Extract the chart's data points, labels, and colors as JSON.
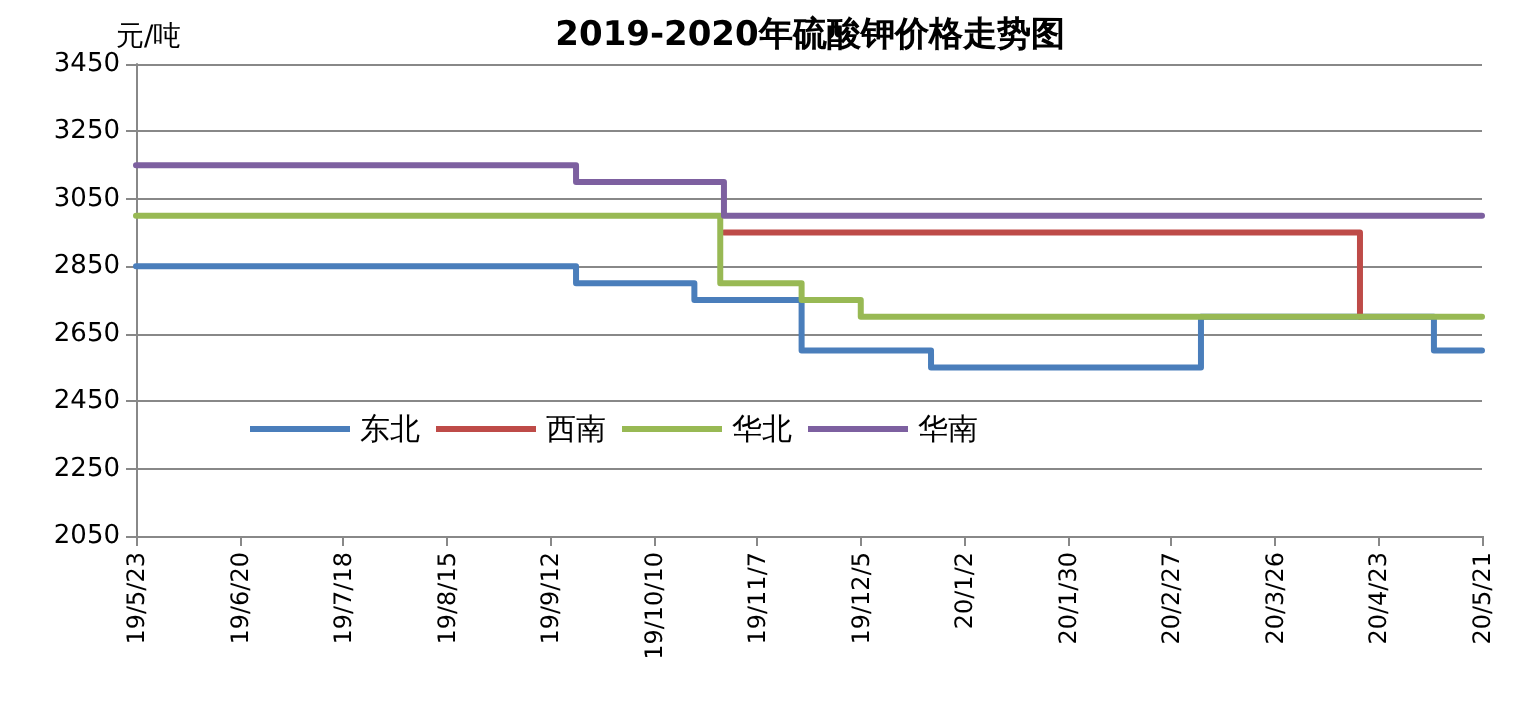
{
  "chart_data": {
    "type": "step",
    "title": "2019-2020年硫酸钾价格走势图",
    "ylabel": "元/吨",
    "series": [
      {
        "name": "东北",
        "color": "#4a7ebb",
        "x": [
          "2019-05-23",
          "2019-09-19",
          "2019-10-21",
          "2019-11-19",
          "2019-12-24",
          "2020-03-06",
          "2020-05-08",
          "2020-05-21"
        ],
        "values": [
          2850,
          2800,
          2750,
          2600,
          2550,
          2700,
          2600,
          2600
        ]
      },
      {
        "name": "西南",
        "color": "#be4b48",
        "x": [
          "2019-10-29",
          "2020-04-18"
        ],
        "values": [
          2950,
          2700
        ]
      },
      {
        "name": "华北",
        "color": "#98b954",
        "x": [
          "2019-05-23",
          "2019-10-28",
          "2019-11-19",
          "2019-12-05",
          "2020-05-21"
        ],
        "values": [
          3000,
          2800,
          2750,
          2700,
          2700
        ]
      },
      {
        "name": "华南",
        "color": "#7d60a0",
        "x": [
          "2019-05-23",
          "2019-09-19",
          "2019-10-29",
          "2020-05-21"
        ],
        "values": [
          3150,
          3100,
          3000,
          3000
        ]
      }
    ],
    "xlim": [
      "2019-05-23",
      "2020-05-21"
    ],
    "xticks": [
      {
        "value": "2019-05-23",
        "label": "19/5/23"
      },
      {
        "value": "2019-06-20",
        "label": "19/6/20"
      },
      {
        "value": "2019-07-18",
        "label": "19/7/18"
      },
      {
        "value": "2019-08-15",
        "label": "19/8/15"
      },
      {
        "value": "2019-09-12",
        "label": "19/9/12"
      },
      {
        "value": "2019-10-10",
        "label": "19/10/10"
      },
      {
        "value": "2019-11-07",
        "label": "19/11/7"
      },
      {
        "value": "2019-12-05",
        "label": "19/12/5"
      },
      {
        "value": "2020-01-02",
        "label": "20/1/2"
      },
      {
        "value": "2020-01-30",
        "label": "20/1/30"
      },
      {
        "value": "2020-02-27",
        "label": "20/2/27"
      },
      {
        "value": "2020-03-26",
        "label": "20/3/26"
      },
      {
        "value": "2020-04-23",
        "label": "20/4/23"
      },
      {
        "value": "2020-05-21",
        "label": "20/5/21"
      }
    ],
    "ylim": [
      2050,
      3450
    ],
    "yticks": [
      2050,
      2250,
      2450,
      2650,
      2850,
      3050,
      3250,
      3450
    ],
    "grid": "y",
    "legend": "bottom left",
    "marker": "none",
    "line_style": "solid"
  }
}
